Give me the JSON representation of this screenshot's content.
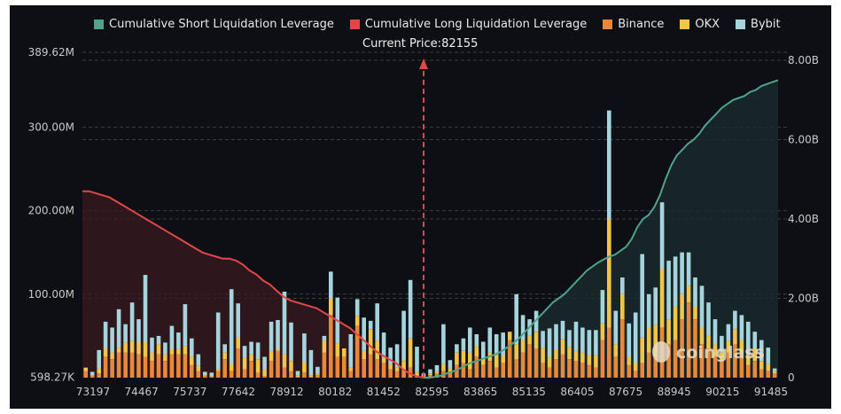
{
  "chart_data": {
    "type": "bar",
    "title": "",
    "legend": [
      {
        "label": "Cumulative Short Liquidation Leverage",
        "color": "#4fa28c"
      },
      {
        "label": "Cumulative Long Liquidation Leverage",
        "color": "#e04848"
      },
      {
        "label": "Binance",
        "color": "#e8883a"
      },
      {
        "label": "OKX",
        "color": "#f1c44a"
      },
      {
        "label": "Bybit",
        "color": "#a6d4dc"
      }
    ],
    "legend_position": "top",
    "annotation": {
      "label": "Current Price:",
      "value": "82155",
      "x_index": 51
    },
    "x_tick_labels": [
      "73197",
      "74467",
      "75737",
      "77642",
      "78912",
      "80182",
      "81452",
      "82595",
      "83865",
      "85135",
      "86405",
      "87675",
      "88945",
      "90215",
      "91485"
    ],
    "y_left_tick_labels": [
      "598.27K",
      "100.00M",
      "200.00M",
      "300.00M",
      "389.62M"
    ],
    "y_left_range_millions": [
      0,
      389.62
    ],
    "y_right_tick_labels": [
      "0",
      "2.00B",
      "4.00B",
      "6.00B",
      "8.00B"
    ],
    "y_right_range_billions": [
      0,
      8.4
    ],
    "grid": true,
    "watermark": "coinglass",
    "series_stacked_millions": {
      "Binance": [
        8,
        2,
        5,
        25,
        22,
        30,
        30,
        30,
        28,
        25,
        20,
        28,
        20,
        28,
        28,
        28,
        15,
        8,
        2,
        1,
        8,
        22,
        8,
        35,
        10,
        20,
        6,
        2,
        20,
        32,
        12,
        8,
        1,
        6,
        1,
        3,
        30,
        75,
        25,
        25,
        8,
        62,
        22,
        28,
        22,
        18,
        10,
        8,
        10,
        12,
        2,
        1,
        3,
        5,
        8,
        5,
        15,
        18,
        10,
        25,
        15,
        20,
        12,
        18,
        45,
        22,
        30,
        40,
        35,
        18,
        12,
        22,
        28,
        22,
        20,
        18,
        15,
        12,
        45,
        60,
        25,
        70,
        15,
        8,
        18,
        30,
        25,
        60,
        40,
        45,
        70,
        90,
        70,
        40,
        35,
        25,
        20,
        30,
        40,
        30,
        15,
        20,
        10,
        8,
        5
      ],
      "OKX": [
        4,
        1,
        6,
        10,
        8,
        6,
        12,
        14,
        14,
        18,
        10,
        12,
        8,
        6,
        6,
        10,
        10,
        6,
        1,
        1,
        2,
        8,
        8,
        14,
        14,
        8,
        16,
        8,
        12,
        2,
        16,
        12,
        2,
        12,
        2,
        2,
        14,
        20,
        16,
        10,
        4,
        12,
        10,
        30,
        22,
        6,
        6,
        4,
        10,
        35,
        5,
        1,
        2,
        2,
        8,
        6,
        15,
        14,
        20,
        12,
        8,
        10,
        15,
        8,
        10,
        18,
        15,
        10,
        20,
        18,
        12,
        12,
        18,
        15,
        12,
        12,
        12,
        15,
        20,
        130,
        15,
        30,
        10,
        10,
        30,
        30,
        38,
        70,
        30,
        40,
        30,
        20,
        15,
        20,
        15,
        15,
        10,
        14,
        18,
        15,
        12,
        15,
        10,
        8,
        3
      ],
      "Bybit": [
        0,
        4,
        22,
        32,
        30,
        46,
        22,
        46,
        28,
        80,
        18,
        10,
        14,
        28,
        20,
        50,
        22,
        14,
        4,
        4,
        68,
        10,
        90,
        40,
        14,
        15,
        20,
        15,
        35,
        35,
        75,
        46,
        5,
        35,
        30,
        8,
        6,
        32,
        55,
        0,
        40,
        20,
        40,
        10,
        45,
        30,
        20,
        28,
        60,
        70,
        30,
        3,
        5,
        8,
        48,
        10,
        10,
        15,
        30,
        15,
        20,
        30,
        25,
        28,
        0,
        60,
        30,
        20,
        25,
        20,
        35,
        30,
        22,
        20,
        35,
        30,
        30,
        30,
        40,
        130,
        40,
        20,
        40,
        60,
        100,
        40,
        45,
        80,
        70,
        60,
        50,
        40,
        35,
        50,
        40,
        30,
        20,
        20,
        22,
        30,
        40,
        20,
        25,
        20,
        3
      ]
    },
    "cumulative_long_billions": [
      4.7,
      4.7,
      4.65,
      4.6,
      4.55,
      4.45,
      4.35,
      4.25,
      4.15,
      4.05,
      3.95,
      3.85,
      3.75,
      3.65,
      3.55,
      3.45,
      3.35,
      3.25,
      3.15,
      3.1,
      3.05,
      3.0,
      3.0,
      2.95,
      2.85,
      2.7,
      2.6,
      2.45,
      2.35,
      2.2,
      2.05,
      1.95,
      1.9,
      1.85,
      1.8,
      1.75,
      1.65,
      1.55,
      1.45,
      1.35,
      1.25,
      1.1,
      0.95,
      0.8,
      0.65,
      0.55,
      0.45,
      0.35,
      0.2,
      0.1,
      0.03,
      0
    ],
    "cumulative_short_billions": [
      0,
      0,
      0.02,
      0.05,
      0.1,
      0.15,
      0.2,
      0.28,
      0.35,
      0.4,
      0.45,
      0.5,
      0.55,
      0.6,
      0.68,
      0.78,
      0.88,
      1.0,
      1.15,
      1.3,
      1.45,
      1.6,
      1.75,
      1.9,
      2.0,
      2.1,
      2.25,
      2.4,
      2.55,
      2.7,
      2.8,
      2.9,
      2.98,
      3.05,
      3.1,
      3.2,
      3.3,
      3.5,
      3.8,
      4.0,
      4.1,
      4.3,
      4.6,
      5.0,
      5.35,
      5.6,
      5.75,
      5.9,
      6.0,
      6.15,
      6.35,
      6.5,
      6.65,
      6.8,
      6.9,
      7.0,
      7.05,
      7.1,
      7.2,
      7.25,
      7.35,
      7.4,
      7.45,
      7.5
    ]
  }
}
